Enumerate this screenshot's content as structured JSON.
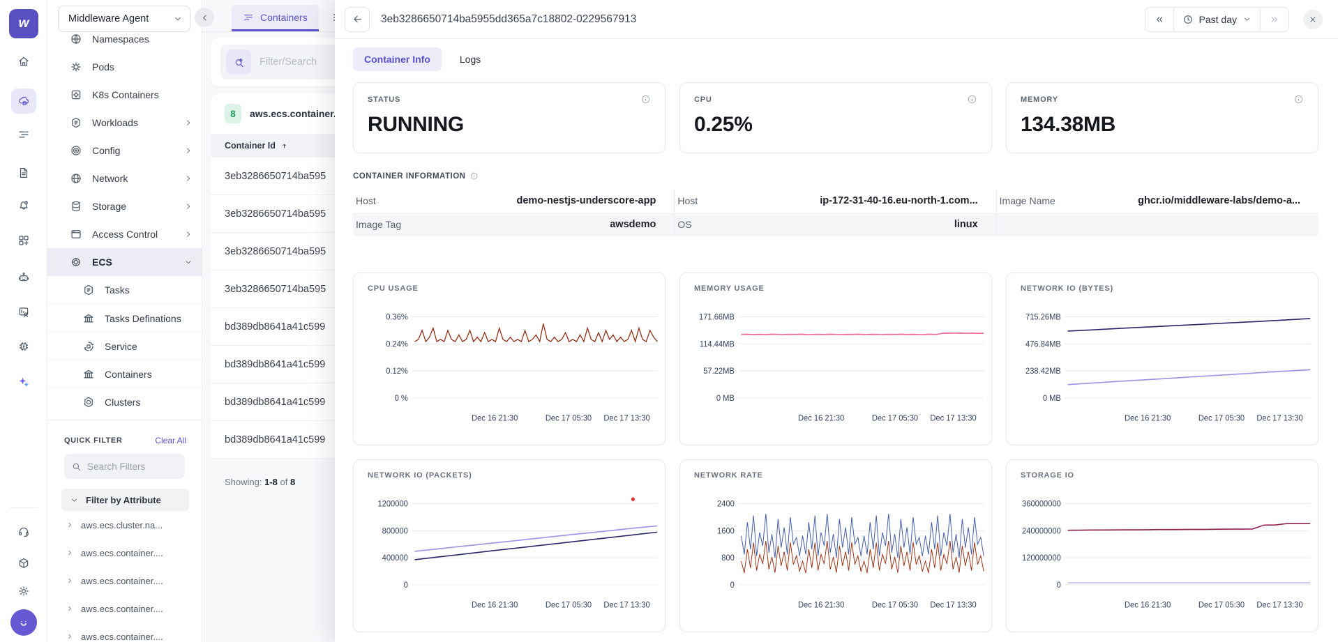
{
  "brand": {
    "workspace": "Middleware Agent"
  },
  "rail": {
    "top_icons": [
      "home-icon",
      "infrastructure-icon",
      "list-icon",
      "logs-icon",
      "alerts-icon",
      "dashboards-icon",
      "bot-icon",
      "rum-icon",
      "processes-icon",
      "ai-icon"
    ],
    "bottom_icons": [
      "support-icon",
      "integrations-icon",
      "settings-icon",
      "user-avatar"
    ]
  },
  "sidebar": {
    "items": [
      {
        "label": "Namespaces"
      },
      {
        "label": "Pods"
      },
      {
        "label": "K8s Containers"
      },
      {
        "label": "Workloads",
        "chevron": "right"
      },
      {
        "label": "Config",
        "chevron": "right"
      },
      {
        "label": "Network",
        "chevron": "right"
      },
      {
        "label": "Storage",
        "chevron": "right"
      },
      {
        "label": "Access Control",
        "chevron": "right"
      },
      {
        "label": "ECS",
        "chevron": "down"
      }
    ],
    "ecs_children": [
      {
        "label": "Tasks"
      },
      {
        "label": "Tasks Definations"
      },
      {
        "label": "Service"
      },
      {
        "label": "Containers"
      },
      {
        "label": "Clusters"
      }
    ],
    "quick_filter": {
      "title": "QUICK FILTER",
      "clear_label": "Clear All",
      "search_placeholder": "Search Filters",
      "group_label": "Filter by Attribute",
      "attributes": [
        "aws.ecs.cluster.na...",
        "aws.ecs.container....",
        "aws.ecs.container....",
        "aws.ecs.container....",
        "aws.ecs.container...."
      ]
    }
  },
  "list_panel": {
    "tab_label": "Containers",
    "search_placeholder": "Filter/Search ",
    "group": {
      "count": "8",
      "label": "aws.ecs.container..."
    },
    "table": {
      "header": "Container Id",
      "rows": [
        "3eb3286650714ba595",
        "3eb3286650714ba595",
        "3eb3286650714ba595",
        "3eb3286650714ba595",
        "bd389db8641a41c599",
        "bd389db8641a41c599",
        "bd389db8641a41c599",
        "bd389db8641a41c599"
      ]
    },
    "footer": {
      "showing_label": "Showing:",
      "range": "1-8",
      "of_label": "of",
      "total": "8"
    }
  },
  "detail": {
    "title": "3eb3286650714ba5955dd365a7c18802-0229567913",
    "time_range": "Past day",
    "tabs": {
      "active": "Container Info",
      "other": "Logs"
    },
    "stats": [
      {
        "label": "STATUS",
        "value": "RUNNING"
      },
      {
        "label": "CPU",
        "value": "0.25%"
      },
      {
        "label": "MEMORY",
        "value": "134.38MB"
      }
    ],
    "info": {
      "title": "CONTAINER INFORMATION",
      "row1": [
        {
          "label": "Host",
          "value": "demo-nestjs-underscore-app"
        },
        {
          "label": "Host",
          "value": "ip-172-31-40-16.eu-north-1.com..."
        },
        {
          "label": "Image Name",
          "value": "ghcr.io/middleware-labs/demo-a..."
        }
      ],
      "row2": [
        {
          "label": "Image Tag",
          "value": "awsdemo"
        },
        {
          "label": "OS",
          "value": "linux"
        }
      ]
    }
  },
  "colors": {
    "accent_purple": "#5a4fcf",
    "cpu_line": "#8f2c12",
    "memory_line": "#ef5d8f",
    "navy_line": "#26256b",
    "light_purple_line": "#9b93e6",
    "rate_blue": "#4059a8",
    "rate_red": "#9c3012",
    "storage_line": "#8c2050",
    "badge_green": "#1d9e57"
  },
  "chart_data": [
    {
      "type": "line",
      "title": "CPU USAGE",
      "xticks": [
        "Dec 16 21:30",
        "Dec 17 05:30",
        "Dec 17 13:30"
      ],
      "yticks": [
        {
          "v": 0.36,
          "label": "0.36%"
        },
        {
          "v": 0.24,
          "label": "0.24%"
        },
        {
          "v": 0.12,
          "label": "0.12%"
        },
        {
          "v": 0,
          "label": "0 %"
        }
      ],
      "ylim": [
        0,
        0.42
      ],
      "ylabel_unit": "%",
      "series": [
        {
          "color": "#8f2c12",
          "width": 1.3,
          "values": [
            0.25,
            0.26,
            0.3,
            0.25,
            0.27,
            0.31,
            0.25,
            0.26,
            0.25,
            0.3,
            0.26,
            0.25,
            0.28,
            0.25,
            0.26,
            0.3,
            0.25,
            0.27,
            0.25,
            0.29,
            0.25,
            0.26,
            0.25,
            0.31,
            0.26,
            0.25,
            0.27,
            0.25,
            0.26,
            0.25,
            0.3,
            0.25,
            0.26,
            0.28,
            0.25,
            0.33,
            0.26,
            0.25,
            0.27,
            0.25,
            0.26,
            0.29,
            0.25,
            0.26,
            0.25,
            0.28,
            0.25,
            0.31,
            0.26,
            0.25,
            0.29,
            0.25,
            0.3,
            0.26,
            0.28,
            0.25,
            0.27,
            0.25,
            0.26,
            0.3,
            0.25,
            0.31,
            0.26,
            0.25,
            0.3,
            0.27,
            0.25
          ]
        }
      ]
    },
    {
      "type": "line",
      "title": "MEMORY USAGE",
      "xticks": [
        "Dec 16 21:30",
        "Dec 17 05:30",
        "Dec 17 13:30"
      ],
      "yticks": [
        {
          "v": 171.66,
          "label": "171.66MB"
        },
        {
          "v": 114.44,
          "label": "114.44MB"
        },
        {
          "v": 57.22,
          "label": "57.22MB"
        },
        {
          "v": 0,
          "label": "0 MB"
        }
      ],
      "ylim": [
        0,
        190
      ],
      "ylabel_unit": "MB",
      "series": [
        {
          "color": "#ef5d8f",
          "width": 1.5,
          "values": [
            134.3,
            134.9,
            134.2,
            134.8,
            134.3,
            134.9,
            134.4,
            134.2,
            134.8,
            134.3,
            134.9,
            134.4,
            134.3,
            134.8,
            134.2,
            134.9,
            134.4,
            134.3,
            134.8,
            134.4,
            134.9,
            134.3,
            134.8,
            134.4,
            134.2,
            134.8,
            134.3,
            134.9,
            134.4,
            134.8,
            134.3,
            134.4,
            134.9,
            134.3,
            136.9,
            137.4,
            137.0,
            137.3,
            136.9,
            137.2,
            136.8,
            137.0
          ]
        }
      ]
    },
    {
      "type": "line",
      "title": "NETWORK IO (BYTES)",
      "xticks": [
        "Dec 16 21:30",
        "Dec 17 05:30",
        "Dec 17 13:30"
      ],
      "yticks": [
        {
          "v": 715.26,
          "label": "715.26MB"
        },
        {
          "v": 476.84,
          "label": "476.84MB"
        },
        {
          "v": 238.42,
          "label": "238.42MB"
        },
        {
          "v": 0,
          "label": "0 MB"
        }
      ],
      "ylim": [
        0,
        790
      ],
      "ylabel_unit": "MB",
      "series": [
        {
          "color": "#26256b",
          "width": 1.6,
          "values": [
            590,
            602,
            614,
            626,
            638,
            650,
            662,
            674,
            687,
            700
          ]
        },
        {
          "color": "#9b93e6",
          "width": 1.6,
          "values": [
            118,
            133,
            148,
            162,
            177,
            192,
            206,
            221,
            236,
            250
          ]
        }
      ]
    },
    {
      "type": "line",
      "title": "NETWORK IO (PACKETS)",
      "xticks": [
        "Dec 16 21:30",
        "Dec 17 05:30",
        "Dec 17 13:30"
      ],
      "yticks": [
        {
          "v": 1200000,
          "label": "1200000"
        },
        {
          "v": 800000,
          "label": "800000"
        },
        {
          "v": 400000,
          "label": "400000"
        },
        {
          "v": 0,
          "label": "0"
        }
      ],
      "ylim": [
        0,
        1320000
      ],
      "marker": {
        "x": 0.9,
        "v": 1265000,
        "color": "#e03131"
      },
      "series": [
        {
          "color": "#9b93e6",
          "width": 1.6,
          "values": [
            495000,
            538000,
            580000,
            622000,
            664000,
            707000,
            749000,
            791000,
            833000,
            872000
          ]
        },
        {
          "color": "#26256b",
          "width": 1.6,
          "values": [
            372000,
            417000,
            462000,
            508000,
            553000,
            598000,
            643000,
            688000,
            734000,
            779000
          ]
        }
      ]
    },
    {
      "type": "line",
      "title": "NETWORK RATE",
      "xticks": [
        "Dec 16 21:30",
        "Dec 17 05:30",
        "Dec 17 13:30"
      ],
      "yticks": [
        {
          "v": 2400,
          "label": "2400"
        },
        {
          "v": 1600,
          "label": "1600"
        },
        {
          "v": 800,
          "label": "800"
        },
        {
          "v": 0,
          "label": "0"
        }
      ],
      "ylim": [
        0,
        2640
      ],
      "series": [
        {
          "color": "#4059a8",
          "width": 1,
          "values": [
            1450,
            900,
            1850,
            1050,
            2050,
            850,
            1550,
            1150,
            2100,
            950,
            1500,
            800,
            1950,
            1100,
            1700,
            900,
            2000,
            1200,
            1400,
            850,
            1450,
            900,
            1850,
            1050,
            2050,
            850,
            1550,
            1150,
            2100,
            950,
            1500,
            800,
            1950,
            1100,
            1700,
            900,
            2000,
            1200,
            1400,
            850,
            1450,
            900,
            1850,
            1050,
            2050,
            850,
            1550,
            1150,
            2100,
            950,
            1500,
            800,
            1950,
            1100,
            1700,
            900,
            2000,
            1200,
            1400,
            850,
            1450,
            900,
            1850,
            1050,
            2050,
            850,
            1550,
            1150,
            2100,
            950,
            1500,
            800,
            1950,
            1100,
            1700,
            900,
            2000,
            1200,
            1400,
            850
          ]
        },
        {
          "color": "#9c3012",
          "width": 1,
          "values": [
            700,
            350,
            1050,
            500,
            1250,
            420,
            900,
            620,
            1300,
            460,
            820,
            360,
            1150,
            560,
            980,
            420,
            1260,
            600,
            860,
            400,
            700,
            350,
            1050,
            500,
            1250,
            420,
            900,
            620,
            1300,
            460,
            820,
            360,
            1150,
            560,
            980,
            420,
            1260,
            600,
            860,
            400,
            700,
            350,
            1050,
            500,
            1250,
            420,
            900,
            620,
            1300,
            460,
            820,
            360,
            1150,
            560,
            980,
            420,
            1260,
            600,
            860,
            400,
            700,
            350,
            1050,
            500,
            1250,
            420,
            900,
            620,
            1300,
            460,
            820,
            360,
            1150,
            560,
            980,
            420,
            1260,
            600,
            860,
            400
          ]
        }
      ]
    },
    {
      "type": "line",
      "title": "STORAGE IO",
      "xticks": [
        "Dec 16 21:30",
        "Dec 17 05:30",
        "Dec 17 13:30"
      ],
      "yticks": [
        {
          "v": 360000000,
          "label": "360000000"
        },
        {
          "v": 240000000,
          "label": "240000000"
        },
        {
          "v": 120000000,
          "label": "120000000"
        },
        {
          "v": 0,
          "label": "0"
        }
      ],
      "ylim": [
        0,
        396000000
      ],
      "series": [
        {
          "color": "#8c2050",
          "width": 1.6,
          "values": [
            242000000,
            242500000,
            243000000,
            243000000,
            243500000,
            244000000,
            244000000,
            244500000,
            245000000,
            245000000,
            245500000,
            246000000,
            246000000,
            246500000,
            247000000,
            247000000,
            247500000,
            265000000,
            265500000,
            272000000,
            272000000,
            272500000
          ]
        },
        {
          "color": "#b9b3ec",
          "width": 1.4,
          "values": [
            9000000,
            9000000
          ]
        }
      ]
    }
  ]
}
